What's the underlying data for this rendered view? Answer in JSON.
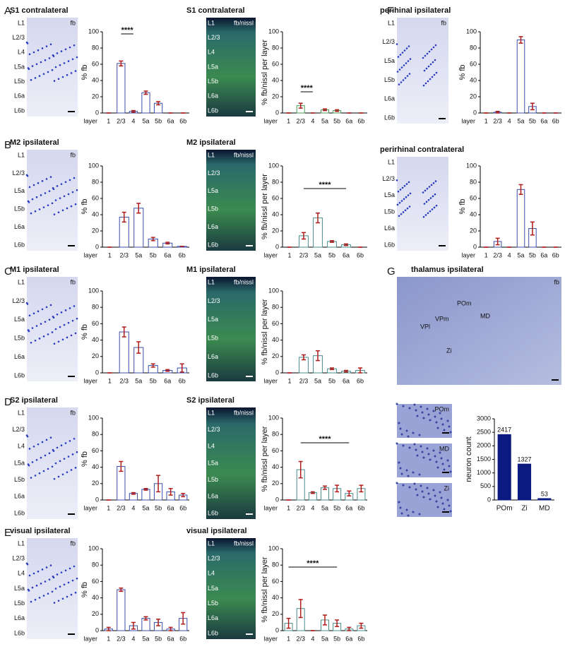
{
  "panel_letters": [
    "A",
    "B",
    "C",
    "D",
    "E",
    "F",
    "G"
  ],
  "images": [
    {
      "title": "S1 contralateral",
      "tag": "fb",
      "style": "fb",
      "layers": [
        "L1",
        "L2/3",
        "L4",
        "L5a",
        "L5b",
        "L6a",
        "L6b"
      ]
    },
    {
      "title": "S1 contralateral",
      "tag": "fb/nissl",
      "style": "nissl",
      "layers": [
        "L1",
        "L2/3",
        "L4",
        "L5a",
        "L5b",
        "L6a",
        "L6b"
      ]
    },
    {
      "title": "perihinal ipsilateral",
      "tag": "fb",
      "style": "fb",
      "layers": [
        "L1",
        "L2/3",
        "L5a",
        "L5b",
        "L6a",
        "L6b"
      ]
    },
    {
      "title": "M2 ipsilateral",
      "tag": "fb",
      "style": "fb",
      "layers": [
        "L1",
        "L2/3",
        "L5a",
        "L5b",
        "L6a",
        "L6b"
      ]
    },
    {
      "title": "M2 ipsilateral",
      "tag": "fb/nissl",
      "style": "nissl",
      "layers": [
        "L1",
        "L2/3",
        "L5a",
        "L5b",
        "L6a",
        "L6b"
      ]
    },
    {
      "title": "perirhinal contralateral",
      "style": "fb",
      "layers": [
        "L1",
        "L2/3",
        "L5a",
        "L5b",
        "L6a",
        "L6b"
      ]
    },
    {
      "title": "M1 ipsilateral",
      "tag": "fb",
      "style": "fb",
      "layers": [
        "L1",
        "L2/3",
        "L5a",
        "L5b",
        "L6a",
        "L6b"
      ]
    },
    {
      "title": "M1 ipsilateral",
      "tag": "fb/nissl",
      "style": "nissl",
      "layers": [
        "L1",
        "L2/3",
        "L5a",
        "L5b",
        "L6a",
        "L6b"
      ]
    },
    {
      "title": "S2 ipsilateral",
      "tag": "fb",
      "style": "fb",
      "layers": [
        "L1",
        "L2/3",
        "L4",
        "L5a",
        "L5b",
        "L6a",
        "L6b"
      ]
    },
    {
      "title": "S2 ipsilateral",
      "tag": "fb/nissl",
      "style": "nissl",
      "layers": [
        "L1",
        "L2/3",
        "L4",
        "L5a",
        "L5b",
        "L6a",
        "L6b"
      ]
    },
    {
      "title": "visual ipsilateral",
      "tag": "fb",
      "style": "fb",
      "layers": [
        "L1",
        "L2/3",
        "L4",
        "L5a",
        "L5b",
        "L6a",
        "L6b"
      ]
    },
    {
      "title": "visual ipsilateral",
      "tag": "fb/nissl",
      "style": "nissl",
      "layers": [
        "L1",
        "L2/3",
        "L4",
        "L5a",
        "L5b",
        "L6a",
        "L6b"
      ]
    },
    {
      "title": "thalamus ipsilateral",
      "tag": "fb",
      "style": "thal",
      "regions": [
        "POm",
        "VPm",
        "VPl",
        "MD",
        "Zi"
      ]
    },
    {
      "tag": "POm",
      "style": "small"
    },
    {
      "tag": "MD",
      "style": "small"
    },
    {
      "tag": "Zi",
      "style": "small"
    }
  ],
  "chart_data": [
    {
      "type": "bar",
      "ylabel": "% fb",
      "xlabel": "layer",
      "categories": [
        "1",
        "2/3",
        "4",
        "5a",
        "5b",
        "6a",
        "6b"
      ],
      "values": [
        0,
        61,
        2,
        25,
        12,
        0,
        0
      ],
      "errors": [
        0,
        3,
        1,
        2,
        2,
        0,
        0
      ],
      "color": "#3b4ea8",
      "ylim": [
        0,
        100
      ],
      "yticks": [
        0,
        20,
        40,
        60,
        80,
        100
      ],
      "annotation": "****"
    },
    {
      "type": "bar",
      "ylabel": "% fb/nissl per layer",
      "xlabel": "layer",
      "categories": [
        "1",
        "2/3",
        "4",
        "5a",
        "5b",
        "6a",
        "6b"
      ],
      "values": [
        0,
        9,
        0,
        4,
        3,
        0,
        0
      ],
      "errors": [
        0,
        3,
        0,
        1,
        1,
        0,
        0
      ],
      "color": "#4a9a5a",
      "ylim": [
        0,
        100
      ],
      "yticks": [
        0,
        20,
        40,
        60,
        80,
        100
      ],
      "annotation": "****"
    },
    {
      "type": "bar",
      "ylabel": "% fb",
      "xlabel": "layer",
      "categories": [
        "1",
        "2/3",
        "4",
        "5a",
        "5b",
        "6a",
        "6b"
      ],
      "values": [
        0,
        1,
        0,
        90,
        8,
        0,
        0
      ],
      "errors": [
        0,
        1,
        0,
        4,
        4,
        0,
        0
      ],
      "color": "#3b4ea8",
      "ylim": [
        0,
        100
      ],
      "yticks": [
        0,
        20,
        40,
        60,
        80,
        100
      ]
    },
    {
      "type": "bar",
      "ylabel": "% fb",
      "xlabel": "layer",
      "categories": [
        "1",
        "2/3",
        "5a",
        "5b",
        "6a",
        "6b"
      ],
      "values": [
        0,
        37,
        48,
        10,
        5,
        1
      ],
      "errors": [
        0,
        6,
        6,
        2,
        1,
        0
      ],
      "color": "#3b4ea8",
      "ylim": [
        0,
        100
      ],
      "yticks": [
        0,
        20,
        40,
        60,
        80,
        100
      ]
    },
    {
      "type": "bar",
      "ylabel": "% fb/nissl per layer",
      "xlabel": "layer",
      "categories": [
        "1",
        "2/3",
        "5a",
        "5b",
        "6a",
        "6b"
      ],
      "values": [
        0,
        14,
        36,
        7,
        3,
        0
      ],
      "errors": [
        0,
        4,
        6,
        1,
        1,
        0
      ],
      "color": "#4a8c8c",
      "ylim": [
        0,
        100
      ],
      "yticks": [
        0,
        20,
        40,
        60,
        80,
        100
      ],
      "annotation": "****"
    },
    {
      "type": "bar",
      "ylabel": "% fb",
      "xlabel": "layer",
      "categories": [
        "1",
        "2/3",
        "4",
        "5a",
        "5b",
        "6a",
        "6b"
      ],
      "values": [
        0,
        7,
        0,
        71,
        23,
        0,
        0
      ],
      "errors": [
        0,
        4,
        0,
        6,
        8,
        0,
        0
      ],
      "color": "#3b4ea8",
      "ylim": [
        0,
        100
      ],
      "yticks": [
        0,
        20,
        40,
        60,
        80,
        100
      ]
    },
    {
      "type": "bar",
      "ylabel": "% fb",
      "xlabel": "layer",
      "categories": [
        "1",
        "2/3",
        "5a",
        "5b",
        "6a",
        "6b"
      ],
      "values": [
        0,
        50,
        31,
        9,
        3,
        6
      ],
      "errors": [
        0,
        6,
        7,
        2,
        1,
        5
      ],
      "color": "#3b4ea8",
      "ylim": [
        0,
        100
      ],
      "yticks": [
        0,
        20,
        40,
        60,
        80,
        100
      ]
    },
    {
      "type": "bar",
      "ylabel": "% fb/nissl per layer",
      "xlabel": "layer",
      "categories": [
        "1",
        "2/3",
        "5a",
        "5b",
        "6a",
        "6b"
      ],
      "values": [
        0,
        19,
        21,
        5,
        2,
        3
      ],
      "errors": [
        0,
        3,
        6,
        1,
        1,
        3
      ],
      "color": "#4a8c8c",
      "ylim": [
        0,
        100
      ],
      "yticks": [
        0,
        20,
        40,
        60,
        80,
        100
      ]
    },
    {
      "type": "bar",
      "ylabel": "% fb",
      "xlabel": "layer",
      "categories": [
        "1",
        "2/3",
        "4",
        "5a",
        "5b",
        "6a",
        "6b"
      ],
      "values": [
        0,
        41,
        8,
        13,
        20,
        10,
        6
      ],
      "errors": [
        0,
        6,
        1,
        1,
        10,
        4,
        2
      ],
      "color": "#3b4ea8",
      "ylim": [
        0,
        100
      ],
      "yticks": [
        0,
        20,
        40,
        60,
        80,
        100
      ]
    },
    {
      "type": "bar",
      "ylabel": "% fb/nissl per layer",
      "xlabel": "layer",
      "categories": [
        "1",
        "2/3",
        "4",
        "5a",
        "5b",
        "6a",
        "6b"
      ],
      "values": [
        0,
        37,
        9,
        15,
        14,
        8,
        14
      ],
      "errors": [
        0,
        10,
        1,
        2,
        4,
        3,
        4
      ],
      "color": "#4a8c8c",
      "ylim": [
        0,
        100
      ],
      "yticks": [
        0,
        20,
        40,
        60,
        80,
        100
      ],
      "annotation": "****"
    },
    {
      "type": "bar",
      "ylabel": "% fb",
      "xlabel": "layer",
      "categories": [
        "1",
        "2/3",
        "4",
        "5a",
        "5b",
        "6a",
        "6b"
      ],
      "values": [
        2,
        50,
        6,
        15,
        10,
        2,
        15
      ],
      "errors": [
        2,
        2,
        4,
        2,
        4,
        2,
        7
      ],
      "color": "#3b4ea8",
      "ylim": [
        0,
        100
      ],
      "yticks": [
        0,
        20,
        40,
        60,
        80,
        100
      ]
    },
    {
      "type": "bar",
      "ylabel": "% fb/nissl per layer",
      "xlabel": "layer",
      "categories": [
        "1",
        "2/3",
        "4",
        "5a",
        "5b",
        "6a",
        "6b"
      ],
      "values": [
        9,
        27,
        0,
        13,
        9,
        2,
        6
      ],
      "errors": [
        6,
        11,
        0,
        6,
        4,
        2,
        3
      ],
      "color": "#4a8c8c",
      "ylim": [
        0,
        100
      ],
      "yticks": [
        0,
        20,
        40,
        60,
        80,
        100
      ],
      "annotation": "****"
    },
    {
      "type": "bar",
      "ylabel": "neuron count",
      "categories": [
        "POm",
        "Zi",
        "MD"
      ],
      "values": [
        2417,
        1327,
        53
      ],
      "color": "#0b1a80",
      "solid": true,
      "value_labels_shown": true,
      "ylim": [
        0,
        3000
      ],
      "yticks": [
        0,
        500,
        1000,
        1500,
        2000,
        2500,
        3000
      ]
    }
  ]
}
